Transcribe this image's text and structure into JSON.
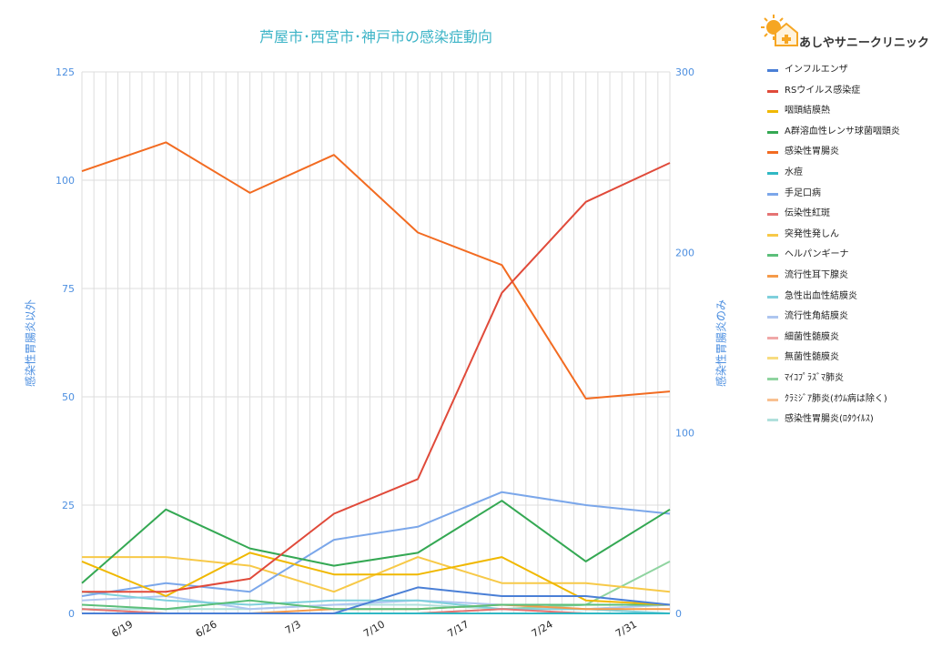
{
  "brand": {
    "name": "あしやサニークリニック",
    "logo_icon": "sun-house-logo-icon"
  },
  "chart_data": {
    "type": "line",
    "title": "芦屋市･西宮市･神戸市の感染症動向",
    "ylabel_left": "感染性胃腸炎以外",
    "ylabel_right": "感染性胃腸炎のみ",
    "ylim_left": [
      0,
      125
    ],
    "ylim_right": [
      0,
      300
    ],
    "yticks_left": [
      "0",
      "25",
      "50",
      "75",
      "100",
      "125"
    ],
    "yticks_right": [
      "0",
      "100",
      "200",
      "300"
    ],
    "x_dates": [
      "6/15",
      "6/22",
      "6/29",
      "7/6",
      "7/13",
      "7/20",
      "7/27",
      "8/3"
    ],
    "xtick_labels": [
      "6/19",
      "6/26",
      "7/3",
      "7/10",
      "7/17",
      "7/24",
      "7/31"
    ],
    "grid": true,
    "legend_position": "right",
    "series": [
      {
        "name": "インフルエンザ",
        "axis": "left",
        "color": "#4a7fd6",
        "values": [
          0,
          0,
          0,
          0,
          6,
          4,
          4,
          2
        ]
      },
      {
        "name": "RSウイルス感染症",
        "axis": "left",
        "color": "#e04a3a",
        "values": [
          5,
          5,
          8,
          23,
          31,
          74,
          95,
          104
        ]
      },
      {
        "name": "咽頭結膜熱",
        "axis": "left",
        "color": "#f0b800",
        "values": [
          12,
          4,
          14,
          9,
          9,
          13,
          3,
          2
        ]
      },
      {
        "name": "A群溶血性レンサ球菌咽頭炎",
        "axis": "left",
        "color": "#34a853",
        "values": [
          7,
          24,
          15,
          11,
          14,
          26,
          12,
          24
        ]
      },
      {
        "name": "感染性胃腸炎",
        "axis": "right",
        "color": "#f26b21",
        "values": [
          245,
          261,
          233,
          254,
          211,
          193,
          119,
          123
        ]
      },
      {
        "name": "水痘",
        "axis": "left",
        "color": "#30b8c4",
        "values": [
          0,
          0,
          0,
          0,
          0,
          0,
          0,
          0
        ]
      },
      {
        "name": "手足口病",
        "axis": "left",
        "color": "#7ba7ea",
        "values": [
          4,
          7,
          5,
          17,
          20,
          28,
          25,
          23
        ]
      },
      {
        "name": "伝染性紅斑",
        "axis": "left",
        "color": "#e57373",
        "values": [
          1,
          0,
          0,
          0,
          0,
          1,
          0,
          0
        ]
      },
      {
        "name": "突発性発しん",
        "axis": "left",
        "color": "#f7c948",
        "values": [
          13,
          13,
          11,
          5,
          13,
          7,
          7,
          5
        ]
      },
      {
        "name": "ヘルパンギーナ",
        "axis": "left",
        "color": "#5cbf7a",
        "values": [
          2,
          1,
          3,
          1,
          1,
          2,
          2,
          2
        ]
      },
      {
        "name": "流行性耳下腺炎",
        "axis": "left",
        "color": "#f59a4a",
        "values": [
          0,
          0,
          0,
          1,
          1,
          2,
          1,
          1
        ]
      },
      {
        "name": "急性出血性結膜炎",
        "axis": "left",
        "color": "#7fd0dc",
        "values": [
          5,
          3,
          2,
          3,
          3,
          1,
          1,
          0
        ]
      },
      {
        "name": "流行性角結膜炎",
        "axis": "left",
        "color": "#aec6f0",
        "values": [
          3,
          4,
          1,
          2,
          3,
          2,
          1,
          2
        ]
      },
      {
        "name": "細菌性髄膜炎",
        "axis": "left",
        "color": "#f0a8a8",
        "values": [
          0,
          0,
          0,
          0,
          0,
          0,
          0,
          0
        ]
      },
      {
        "name": "無菌性髄膜炎",
        "axis": "left",
        "color": "#f7dc80",
        "values": [
          0,
          0,
          0,
          0,
          0,
          0,
          0,
          0
        ]
      },
      {
        "name": "ﾏｲｺﾌﾟﾗｽﾞﾏ肺炎",
        "axis": "left",
        "color": "#8fd4a0",
        "values": [
          1,
          0,
          0,
          0,
          0,
          1,
          2,
          12
        ]
      },
      {
        "name": "ｸﾗﾐｼﾞｱ肺炎(ｵｳﾑ病は除く)",
        "axis": "left",
        "color": "#f8c090",
        "values": [
          0,
          0,
          0,
          0,
          0,
          0,
          0,
          0
        ]
      },
      {
        "name": "感染性胃腸炎(ﾛﾀｳｲﾙｽ)",
        "axis": "left",
        "color": "#b0e0dc",
        "values": [
          1,
          1,
          1,
          2,
          2,
          1,
          1,
          2
        ]
      }
    ]
  }
}
